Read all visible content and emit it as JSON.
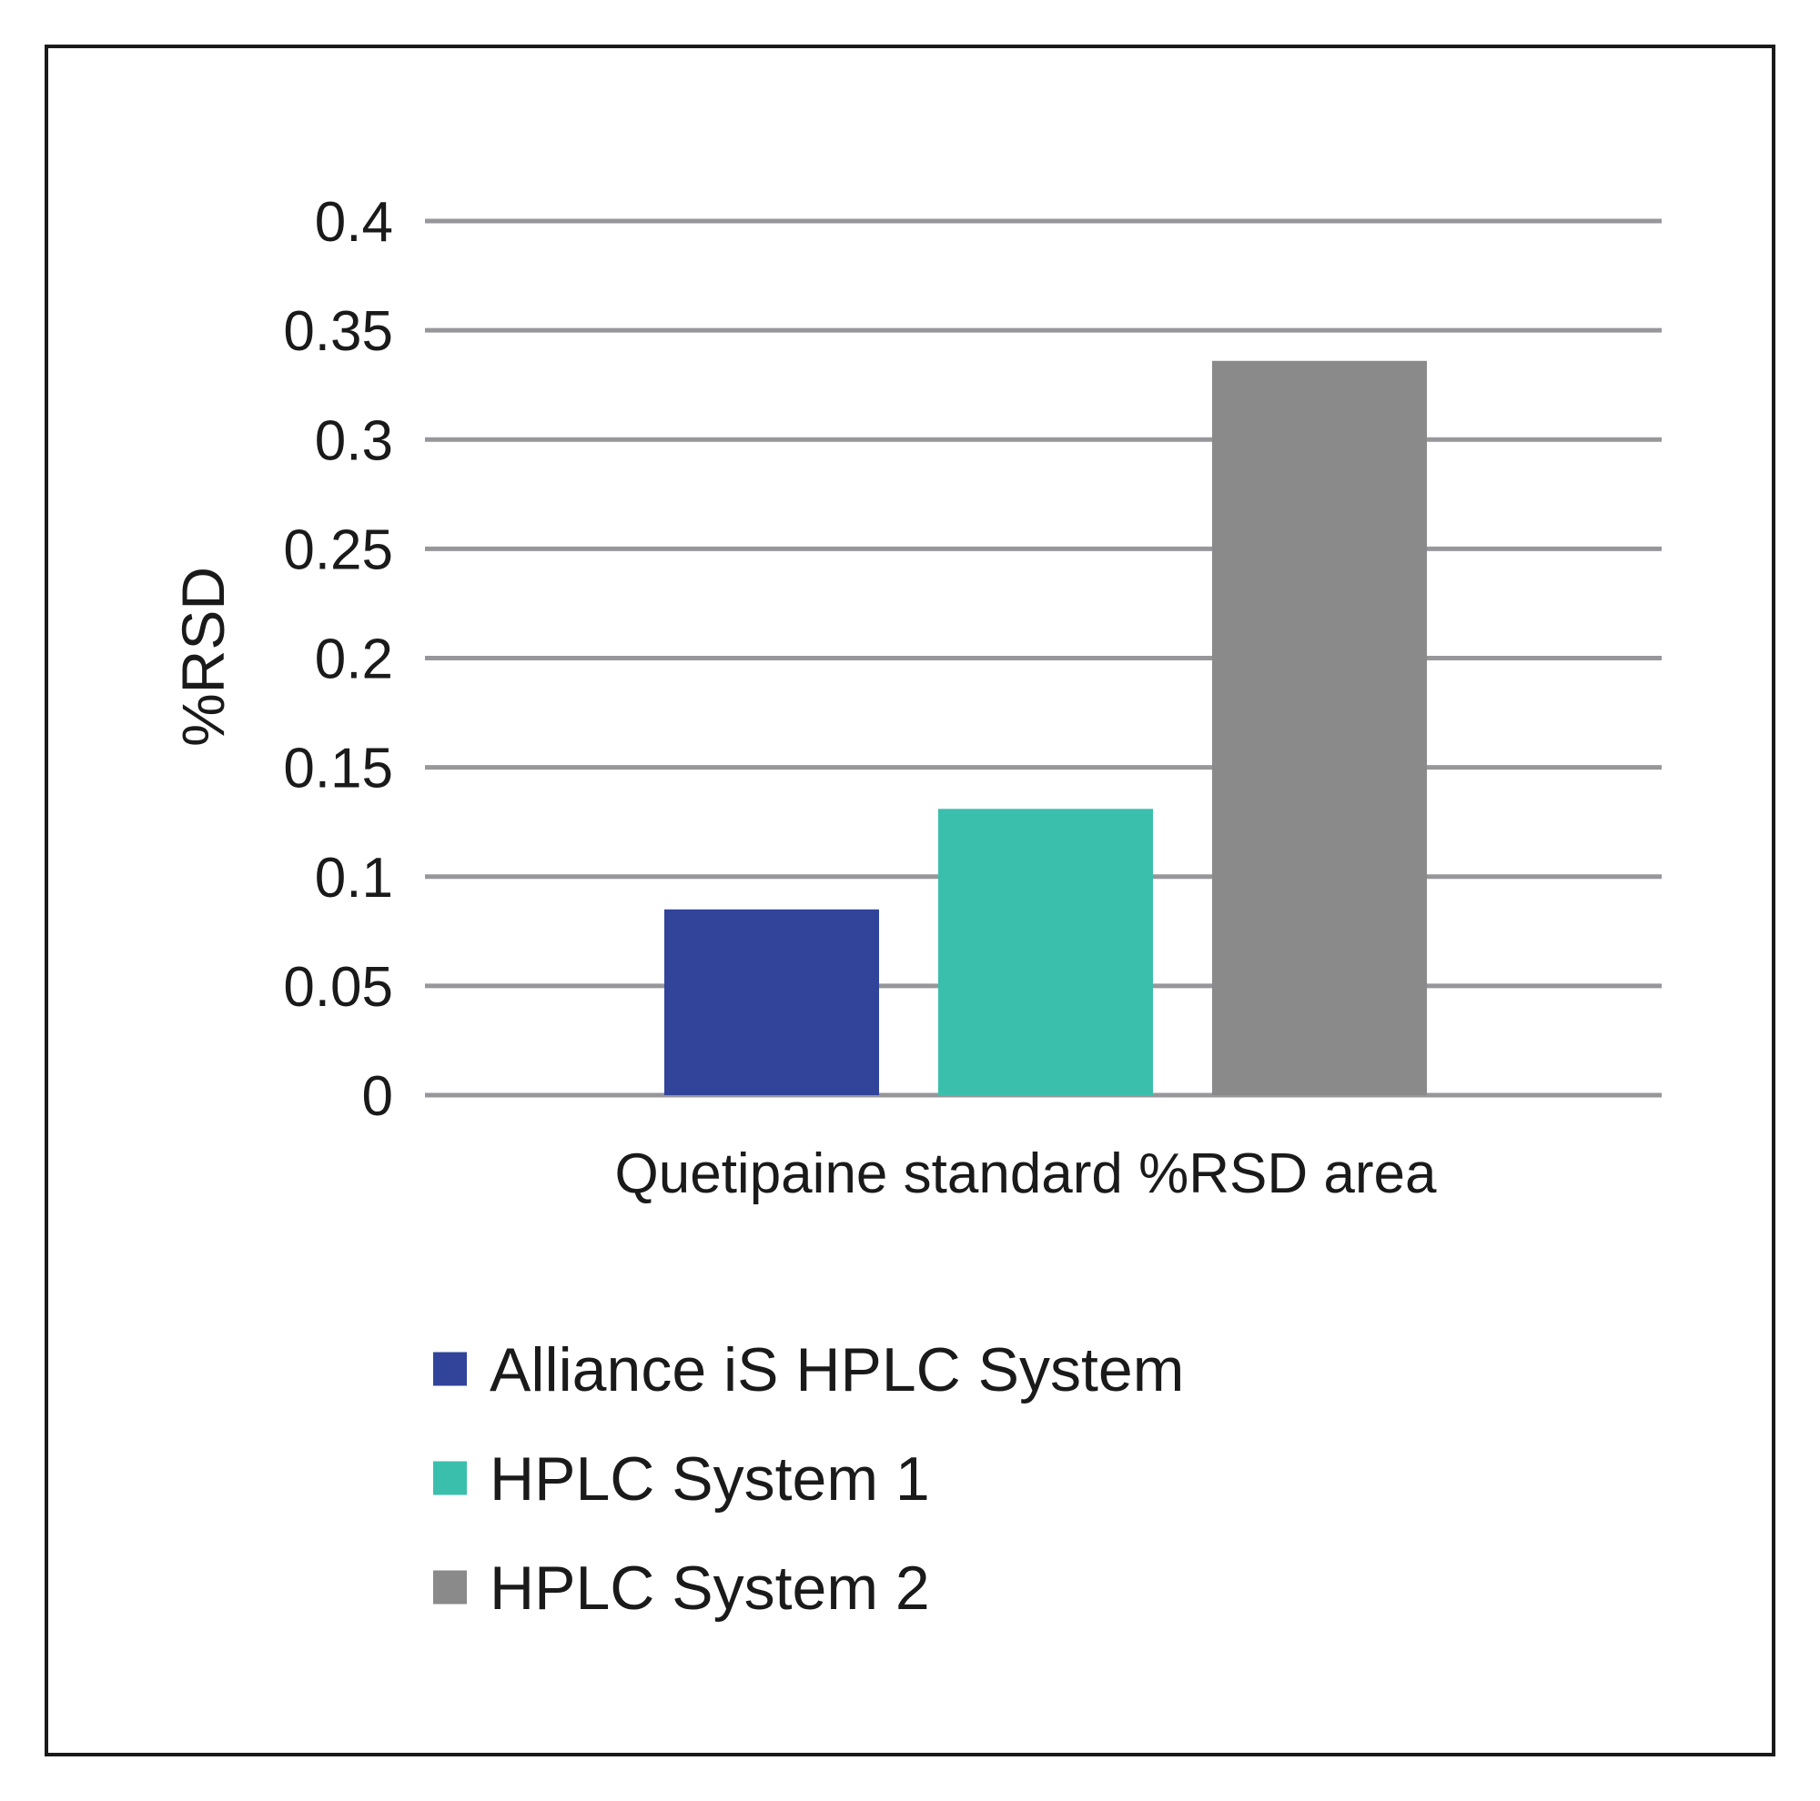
{
  "chart_data": {
    "type": "bar",
    "title": "",
    "xlabel": "",
    "ylabel": "%RSD",
    "categories": [
      "Quetipaine standard %RSD area"
    ],
    "series": [
      {
        "name": "Alliance iS HPLC System",
        "values": [
          0.085
        ],
        "color": "#31449a"
      },
      {
        "name": "HPLC System 1",
        "values": [
          0.131
        ],
        "color": "#3bbfad"
      },
      {
        "name": "HPLC System 2",
        "values": [
          0.336
        ],
        "color": "#8a8a8a"
      }
    ],
    "ylim": [
      0,
      0.4
    ],
    "yticks": [
      "0",
      "0.05",
      "0.1",
      "0.15",
      "0.2",
      "0.25",
      "0.3",
      "0.35",
      "0.4"
    ],
    "grid": true,
    "legend_position": "bottom-left"
  }
}
